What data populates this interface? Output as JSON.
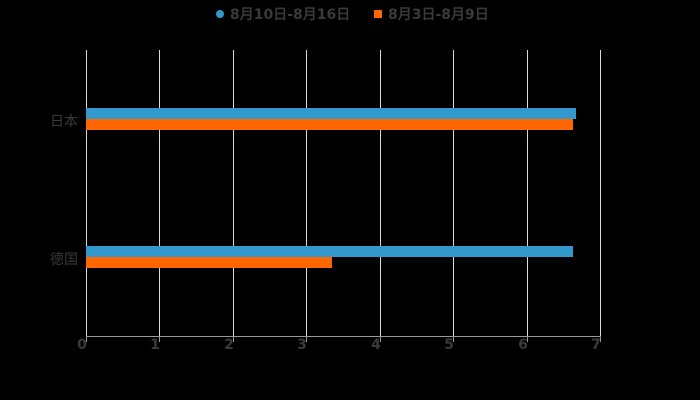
{
  "chart_data": {
    "type": "bar",
    "orientation": "horizontal",
    "title": "",
    "categories": [
      "日本",
      "德国"
    ],
    "series": [
      {
        "name": "8月10日-8月16日",
        "color": "#3399cc",
        "values": [
          6.67,
          6.63
        ]
      },
      {
        "name": "8月3日-8月9日",
        "color": "#ff6600",
        "values": [
          6.63,
          3.35
        ]
      }
    ],
    "xlabel": "",
    "ylabel": "",
    "xlim": [
      0,
      7
    ],
    "xticks": [
      "0",
      "1",
      "2",
      "3",
      "4",
      "5",
      "6",
      "7"
    ],
    "grid": true,
    "legend_position": "top"
  },
  "legend": {
    "items": [
      {
        "label": "8月10日-8月16日",
        "color": "#3399cc",
        "shape": "circle"
      },
      {
        "label": "8月3日-8月9日",
        "color": "#ff6600",
        "shape": "square"
      }
    ]
  }
}
